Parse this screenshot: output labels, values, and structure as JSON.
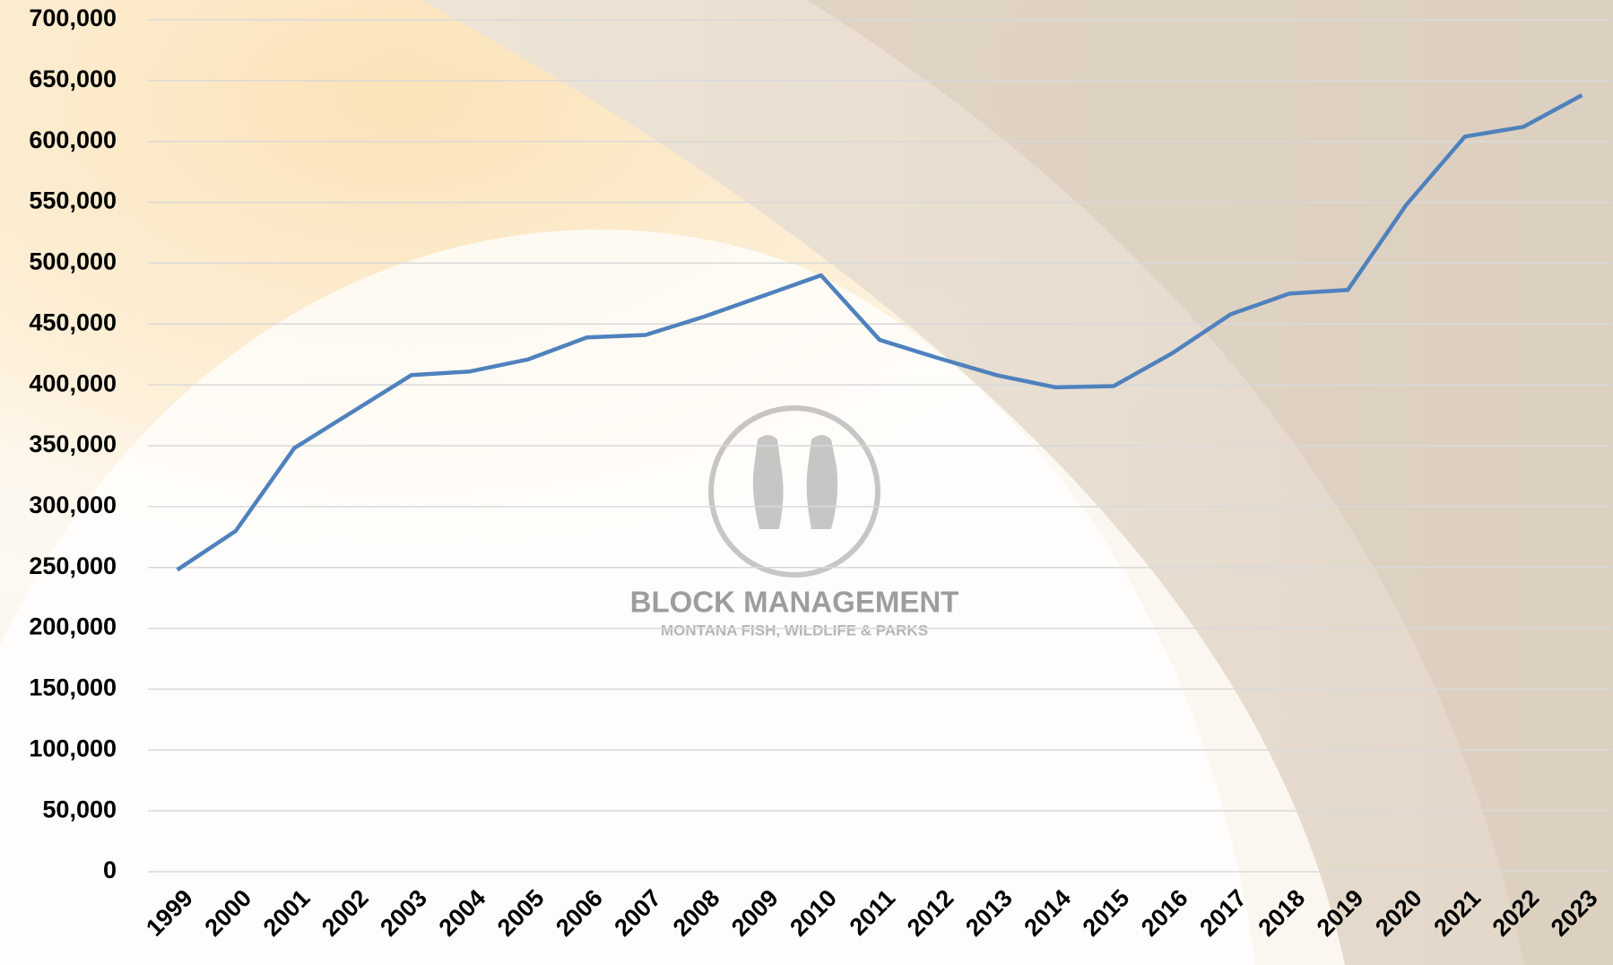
{
  "chart_data": {
    "type": "line",
    "annotations": [
      "BLOCK MANAGEMENT",
      "MONTANA FISH, WILDLIFE & PARKS"
    ],
    "categories": [
      "1999",
      "2000",
      "2001",
      "2002",
      "2003",
      "2004",
      "2005",
      "2006",
      "2007",
      "2008",
      "2009",
      "2010",
      "2011",
      "2012",
      "2013",
      "2014",
      "2015",
      "2016",
      "2017",
      "2018",
      "2019",
      "2020",
      "2021",
      "2022",
      "2023"
    ],
    "values": [
      248000,
      280000,
      348000,
      378000,
      408000,
      411000,
      421000,
      439000,
      441000,
      456000,
      473000,
      490000,
      437000,
      422000,
      408000,
      398000,
      399000,
      426000,
      458000,
      475000,
      478000,
      548000,
      604000,
      612000,
      638000
    ],
    "color": "#4f81bd",
    "ylim": [
      0,
      700000
    ],
    "yticks": [
      0,
      {
        "value": 50000,
        "label": "50,000"
      },
      {
        "value": 100000,
        "label": "100,000"
      },
      {
        "value": 150000,
        "label": "150,000"
      },
      {
        "value": 200000,
        "label": "200,000"
      },
      {
        "value": 250000,
        "label": "250,000"
      },
      {
        "value": 300000,
        "label": "300,000"
      },
      {
        "value": 350000,
        "label": "350,000"
      },
      {
        "value": 400000,
        "label": "400,000"
      },
      {
        "value": 450000,
        "label": "450,000"
      },
      {
        "value": 500000,
        "label": "500,000"
      },
      {
        "value": 550000,
        "label": "550,000"
      },
      {
        "value": 600000,
        "label": "600,000"
      },
      {
        "value": 650000,
        "label": "650,000"
      },
      {
        "value": 700000,
        "label": "700,000"
      }
    ],
    "grid": true
  }
}
